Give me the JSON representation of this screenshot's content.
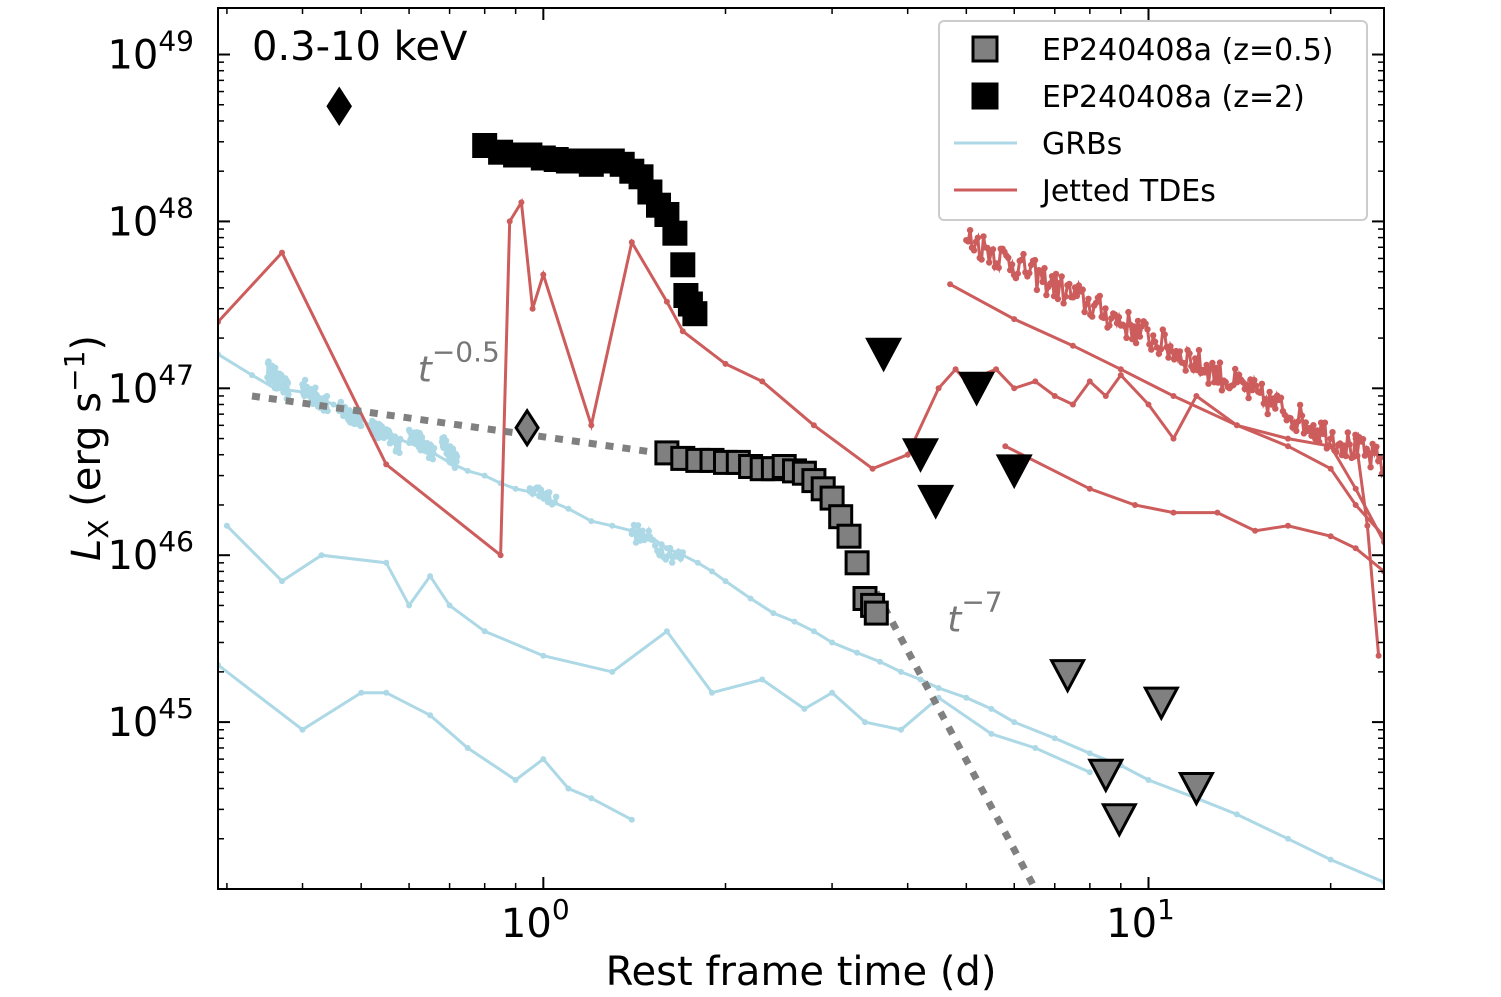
{
  "chart_data": {
    "type": "scatter",
    "xlabel": "Rest frame time (d)",
    "ylabel_main": "L",
    "ylabel_sub": "X",
    "ylabel_rest": " (erg s",
    "ylabel_sup": "−1",
    "ylabel_close": ")",
    "x_scale": "log",
    "y_scale": "log",
    "xlim": [
      0.29,
      24.5
    ],
    "ylim": [
      1e+44,
      1.9e+49
    ],
    "x_major_ticks": [
      {
        "value": 1,
        "base": "10",
        "exp": "0"
      },
      {
        "value": 10,
        "base": "10",
        "exp": "1"
      }
    ],
    "y_major_ticks": [
      {
        "value": 1e+45,
        "base": "10",
        "exp": "45"
      },
      {
        "value": 1e+46,
        "base": "10",
        "exp": "46"
      },
      {
        "value": 1e+47,
        "base": "10",
        "exp": "47"
      },
      {
        "value": 1e+48,
        "base": "10",
        "exp": "48"
      },
      {
        "value": 1e+49,
        "base": "10",
        "exp": "49"
      }
    ],
    "band_label": "0.3-10 keV",
    "legend_position": "top-right",
    "legend": [
      {
        "label": "EP240408a (z=0.5)",
        "marker": "square",
        "color": "#808080"
      },
      {
        "label": "EP240408a (z=2)",
        "marker": "square",
        "color": "#000000"
      },
      {
        "label": "GRBs",
        "marker": "line",
        "color": "#add8e6"
      },
      {
        "label": "Jetted TDEs",
        "marker": "line",
        "color": "#cd5c5c"
      }
    ],
    "annotations": [
      {
        "base": "t",
        "exp": "−0.5",
        "x": 0.62,
        "y": 1.1e+47
      },
      {
        "base": "t",
        "exp": "−7",
        "x": 4.65,
        "y": 3.5e+45
      }
    ],
    "powerlaw_lines": [
      {
        "name": "t^-0.5",
        "points": [
          [
            0.33,
            9e+46
          ],
          [
            1.55,
            4.1e+46
          ]
        ]
      },
      {
        "name": "t^-7",
        "points": [
          [
            3.55,
            6e+45
          ],
          [
            6.5,
            1e+44
          ]
        ]
      }
    ],
    "series": [
      {
        "name": "EP240408a (z=2)",
        "marker": "square",
        "color": "#000000",
        "x": [
          0.8,
          0.85,
          0.9,
          0.95,
          1.0,
          1.05,
          1.1,
          1.15,
          1.2,
          1.25,
          1.3,
          1.35,
          1.4,
          1.45,
          1.5,
          1.55,
          1.6,
          1.65,
          1.7,
          1.72,
          1.75,
          1.78
        ],
        "y": [
          2.85e+48,
          2.6e+48,
          2.5e+48,
          2.5e+48,
          2.4e+48,
          2.35e+48,
          2.3e+48,
          2.3e+48,
          2.2e+48,
          2.3e+48,
          2.3e+48,
          2.2e+48,
          2e+48,
          1.85e+48,
          1.5e+48,
          1.25e+48,
          1.1e+48,
          8.5e+47,
          5.5e+47,
          3.6e+47,
          3.2e+47,
          2.8e+47
        ]
      },
      {
        "name": "EP240408a (z=0.5)",
        "marker": "square",
        "color": "#808080",
        "x": [
          1.6,
          1.7,
          1.8,
          1.9,
          2.0,
          2.1,
          2.2,
          2.3,
          2.4,
          2.5,
          2.6,
          2.7,
          2.8,
          2.9,
          3.0,
          3.1,
          3.2,
          3.3,
          3.4,
          3.5,
          3.55
        ],
        "y": [
          4.1e+46,
          3.8e+46,
          3.7e+46,
          3.7e+46,
          3.6e+46,
          3.6e+46,
          3.4e+46,
          3.3e+46,
          3.3e+46,
          3.4e+46,
          3.2e+46,
          3.1e+46,
          2.8e+46,
          2.5e+46,
          2.2e+46,
          1.7e+46,
          1.3e+46,
          9e+45,
          5.5e+45,
          5e+45,
          4.5e+45
        ]
      },
      {
        "name": "upper limits (z=2)",
        "marker": "triangle-down",
        "color": "#000000",
        "x": [
          3.65,
          4.2,
          4.45,
          5.2,
          6.0
        ],
        "y": [
          1.6e+47,
          4e+46,
          2.1e+46,
          1e+47,
          3.2e+46
        ]
      },
      {
        "name": "upper limits (z=0.5)",
        "marker": "triangle-down",
        "color": "#808080",
        "x": [
          7.35,
          8.5,
          8.95,
          10.5,
          12.0
        ],
        "y": [
          1.9e+45,
          4.8e+44,
          2.6e+44,
          1.3e+45,
          4e+44
        ]
      },
      {
        "name": "diamond (z=2)",
        "marker": "diamond",
        "color": "#000000",
        "x": [
          0.46
        ],
        "y": [
          4.9e+48
        ]
      },
      {
        "name": "diamond (z=0.5)",
        "marker": "diamond",
        "color": "#808080",
        "x": [
          0.94
        ],
        "y": [
          5.8e+46
        ]
      }
    ],
    "grb_curves": [
      {
        "x": [
          0.29,
          0.33,
          0.36,
          0.4,
          0.45,
          0.5,
          0.55,
          0.6,
          0.65,
          0.7,
          0.75,
          0.8,
          0.85,
          0.9,
          0.95,
          1.0,
          1.1,
          1.2,
          1.3,
          1.4,
          1.5,
          1.6,
          1.7,
          1.8,
          1.9,
          2.0,
          2.2,
          2.4,
          2.6,
          2.8,
          3.0,
          3.3,
          3.6,
          3.9,
          4.2,
          4.5,
          5.0,
          5.5,
          6.0,
          7.0,
          8.0,
          9.0,
          10.0,
          12.0,
          14.0,
          17.0,
          20.0,
          24.5
        ],
        "y": [
          1.6e+47,
          1.2e+47,
          1e+47,
          9.5e+46,
          8e+46,
          6.5e+46,
          5.3e+46,
          4.7e+46,
          4.2e+46,
          3.6e+46,
          3.2e+46,
          3e+46,
          2.7e+46,
          2.5e+46,
          2.4e+46,
          2.2e+46,
          1.9e+46,
          1.6e+46,
          1.5e+46,
          1.4e+46,
          1.3e+46,
          1.1e+46,
          1e+46,
          9e+45,
          8e+45,
          7e+45,
          5.5e+45,
          4.5e+45,
          4e+45,
          3.5e+45,
          3e+45,
          2.6e+45,
          2.3e+45,
          2e+45,
          1.8e+45,
          1.6e+45,
          1.4e+45,
          1.2e+45,
          1e+45,
          8e+44,
          6.5e+44,
          5.5e+44,
          4.5e+44,
          3.5e+44,
          2.8e+44,
          2e+44,
          1.5e+44,
          1.1e+44
        ]
      },
      {
        "x": [
          0.3,
          0.37,
          0.43,
          0.55,
          0.6,
          0.65,
          0.7,
          0.8,
          1.0,
          1.3,
          1.6,
          1.9,
          2.3,
          2.7,
          3.0,
          3.4,
          3.9,
          4.5,
          5.5,
          6.5,
          8.0
        ],
        "y": [
          1.5e+46,
          7e+45,
          1e+46,
          9e+45,
          5e+45,
          7.5e+45,
          5e+45,
          3.5e+45,
          2.5e+45,
          2e+45,
          3.5e+45,
          1.5e+45,
          1.8e+45,
          1.2e+45,
          1.5e+45,
          1e+45,
          9e+44,
          1.4e+45,
          8.5e+44,
          7e+44,
          5e+44
        ]
      },
      {
        "x": [
          0.29,
          0.4,
          0.5,
          0.55,
          0.65,
          0.75,
          0.9,
          1.0,
          1.1,
          1.2,
          1.4
        ],
        "y": [
          2.2e+45,
          9e+44,
          1.5e+45,
          1.5e+45,
          1.1e+45,
          7e+44,
          4.5e+44,
          6e+44,
          4e+44,
          3.5e+44,
          2.6e+44
        ]
      }
    ],
    "tde_curves": [
      {
        "x": [
          0.29,
          0.37,
          0.55,
          0.85,
          0.88,
          0.92,
          0.96,
          1.0,
          1.2,
          1.4,
          1.6,
          1.7,
          2.0,
          2.3,
          2.8,
          3.5,
          4.0,
          4.5,
          4.8,
          5.0,
          5.3,
          5.6,
          6.0,
          6.5,
          7.0,
          7.5,
          8.0,
          8.5,
          9.0,
          10.0,
          11.0,
          12.0,
          14.0,
          17.0,
          20.0,
          22.0,
          24.5
        ],
        "y": [
          2.5e+47,
          6.5e+47,
          3.5e+46,
          1e+46,
          1e+48,
          1.3e+48,
          3e+47,
          4.8e+47,
          6e+46,
          7.5e+47,
          3.3e+47,
          2.2e+47,
          1.4e+47,
          1.1e+47,
          6e+46,
          3.3e+46,
          4e+46,
          1e+47,
          1.3e+47,
          1.1e+47,
          1.2e+47,
          1.3e+47,
          1e+47,
          1.1e+47,
          9e+46,
          8e+46,
          1.1e+47,
          9e+46,
          1.2e+47,
          8e+46,
          5e+46,
          9e+46,
          6e+46,
          5e+46,
          4.5e+46,
          2.5e+46,
          1.2e+46
        ]
      },
      {
        "x": [
          4.7,
          6.0,
          7.5,
          9.0,
          11.0,
          14.0,
          17.0,
          20.0,
          22.0,
          24.5
        ],
        "y": [
          4.2e+47,
          2.6e+47,
          1.8e+47,
          1.3e+47,
          9e+46,
          6e+46,
          4.5e+46,
          3.3e+46,
          2e+46,
          1.3e+46
        ]
      },
      {
        "x": [
          5.8,
          8.0,
          9.5,
          11.0,
          13.0,
          15.0,
          17.0,
          20.0,
          22.0,
          24.5
        ],
        "y": [
          4.5e+46,
          2.5e+46,
          2e+46,
          1.8e+46,
          1.8e+46,
          1.4e+46,
          1.5e+46,
          1.3e+46,
          1.1e+46,
          8e+45
        ]
      },
      {
        "x": [
          22.0,
          23.0,
          24.0
        ],
        "y": [
          5e+46,
          1.5e+46,
          2.5e+45
        ]
      }
    ],
    "dense_tde": {
      "x_start": 5.0,
      "x_end": 24.5,
      "y_start": 8e+47,
      "y_end": 3.5e+46,
      "n": 220,
      "jitter": 0.09
    },
    "dense_grb_clusters": [
      {
        "x_start": 0.35,
        "x_end": 0.38,
        "y_start": 1.3e+47,
        "y_end": 9.5e+46,
        "n": 40,
        "jitter": 0.06
      },
      {
        "x_start": 0.4,
        "x_end": 0.44,
        "y_start": 1e+47,
        "y_end": 8e+46,
        "n": 40,
        "jitter": 0.06
      },
      {
        "x_start": 0.46,
        "x_end": 0.5,
        "y_start": 7.5e+46,
        "y_end": 6.5e+46,
        "n": 40,
        "jitter": 0.05
      },
      {
        "x_start": 0.52,
        "x_end": 0.58,
        "y_start": 6e+46,
        "y_end": 4.5e+46,
        "n": 40,
        "jitter": 0.05
      },
      {
        "x_start": 0.6,
        "x_end": 0.66,
        "y_start": 5.5e+46,
        "y_end": 4e+46,
        "n": 40,
        "jitter": 0.05
      },
      {
        "x_start": 0.68,
        "x_end": 0.72,
        "y_start": 4.8e+46,
        "y_end": 3.6e+46,
        "n": 30,
        "jitter": 0.05
      },
      {
        "x_start": 0.95,
        "x_end": 1.05,
        "y_start": 2.6e+46,
        "y_end": 2.1e+46,
        "n": 20,
        "jitter": 0.04
      },
      {
        "x_start": 1.4,
        "x_end": 1.7,
        "y_start": 1.4e+46,
        "y_end": 9.5e+45,
        "n": 25,
        "jitter": 0.06
      }
    ]
  }
}
